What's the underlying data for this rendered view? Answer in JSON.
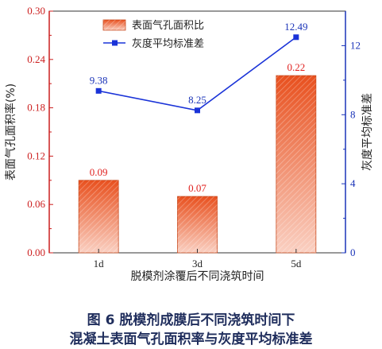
{
  "chart_data": {
    "type": "bar",
    "categories": [
      "1d",
      "3d",
      "5d"
    ],
    "series": [
      {
        "name": "表面气孔面积比",
        "axis": "left",
        "kind": "bar",
        "values": [
          0.09,
          0.07,
          0.22
        ],
        "color": "#e8501e"
      },
      {
        "name": "灰度平均标准差",
        "axis": "right",
        "kind": "line",
        "values": [
          9.38,
          8.25,
          12.49
        ],
        "color": "#1a33d8"
      }
    ],
    "bar_labels": [
      "0.09",
      "0.07",
      "0.22"
    ],
    "line_labels": [
      "9.38",
      "8.25",
      "12.49"
    ],
    "xlabel": "脱模剂涂覆后不同浇筑时间",
    "ylabel": "表面气孔面积率(%)",
    "ylabel_right": "灰度平均标准差",
    "ylim": [
      0,
      0.3
    ],
    "ylim_right": [
      0,
      14
    ],
    "yticks": [
      "0.00",
      "0.06",
      "0.12",
      "0.18",
      "0.24",
      "0.30"
    ],
    "yticks_right": [
      "0",
      "4",
      "8",
      "12"
    ],
    "legend_position": "top-left"
  },
  "caption": {
    "line1": "图 6   脱模剂成膜后不同浇筑时间下",
    "line2": "混凝土表面气孔面积率与灰度平均标准差"
  },
  "colors": {
    "left_axis": "#cc1f1f",
    "right_axis": "#1a33b8",
    "bar_top": "#e8501e",
    "bar_bottom": "#f7b9a8"
  }
}
